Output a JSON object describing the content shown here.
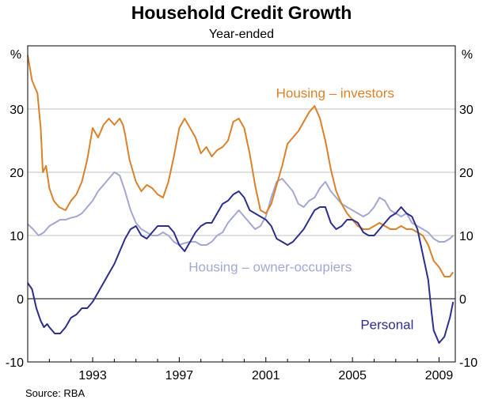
{
  "chart_data": {
    "type": "line",
    "title": "Household Credit Growth",
    "subtitle": "Year-ended",
    "y_unit_left": "%",
    "y_unit_right": "%",
    "ylim": [
      -10,
      40
    ],
    "yticks": [
      -10,
      0,
      10,
      20,
      30
    ],
    "xlim": [
      1990.0,
      2009.75
    ],
    "xticks": [
      1993,
      1997,
      2001,
      2005,
      2009
    ],
    "grid": true,
    "source": "Source: RBA",
    "colors": {
      "housing_investors": "#d9822b",
      "housing_owner": "#a3a8d2",
      "personal": "#2e2e8c",
      "grid": "#c0c0c0",
      "zero_line": "#000000"
    },
    "series": [
      {
        "name": "Housing – investors",
        "key": "housing_investors",
        "x": [
          1990.0,
          1990.2,
          1990.45,
          1990.6,
          1990.7,
          1990.85,
          1991.0,
          1991.2,
          1991.45,
          1991.75,
          1992.0,
          1992.25,
          1992.5,
          1992.75,
          1993.0,
          1993.25,
          1993.5,
          1993.75,
          1994.0,
          1994.25,
          1994.4,
          1994.5,
          1994.7,
          1995.0,
          1995.25,
          1995.5,
          1995.75,
          1996.0,
          1996.25,
          1996.5,
          1996.75,
          1997.0,
          1997.25,
          1997.5,
          1997.75,
          1998.0,
          1998.25,
          1998.5,
          1998.75,
          1999.0,
          1999.25,
          1999.5,
          1999.75,
          2000.0,
          2000.25,
          2000.5,
          2000.75,
          2001.0,
          2001.25,
          2001.5,
          2001.75,
          2002.0,
          2002.25,
          2002.5,
          2002.75,
          2003.0,
          2003.25,
          2003.5,
          2003.75,
          2004.0,
          2004.25,
          2004.5,
          2004.75,
          2005.0,
          2005.25,
          2005.5,
          2005.75,
          2006.0,
          2006.25,
          2006.5,
          2006.75,
          2007.0,
          2007.25,
          2007.5,
          2007.75,
          2008.0,
          2008.25,
          2008.5,
          2008.75,
          2009.0,
          2009.25,
          2009.5,
          2009.65
        ],
        "y": [
          38.5,
          34.5,
          32.5,
          27,
          20,
          21,
          17.5,
          15.5,
          14.5,
          14,
          15.5,
          16.5,
          18.5,
          22,
          27,
          25.5,
          27.5,
          28.5,
          27.5,
          28.5,
          27.5,
          26,
          22,
          18.5,
          17,
          18,
          17.5,
          16.5,
          16,
          18.5,
          22.5,
          27,
          28.5,
          27,
          25.5,
          23,
          24,
          22.5,
          23.5,
          24,
          25,
          28,
          28.5,
          27,
          23,
          18,
          14,
          13.5,
          15,
          18,
          21,
          24.5,
          25.5,
          26.5,
          28,
          29.5,
          30.5,
          28.5,
          25,
          20.5,
          17,
          15,
          13.5,
          12.5,
          11.5,
          11,
          11,
          11.5,
          12,
          11.5,
          11,
          11,
          11.5,
          11,
          11,
          10.5,
          10,
          8.5,
          6,
          5,
          3.5,
          3.5,
          4.2
        ]
      },
      {
        "name": "Housing – owner-occupiers",
        "key": "housing_owner",
        "x": [
          1990.0,
          1990.25,
          1990.5,
          1990.75,
          1991.0,
          1991.25,
          1991.5,
          1991.75,
          1992.0,
          1992.25,
          1992.5,
          1992.75,
          1993.0,
          1993.25,
          1993.5,
          1993.75,
          1994.0,
          1994.25,
          1994.5,
          1994.75,
          1995.0,
          1995.25,
          1995.5,
          1995.75,
          1996.0,
          1996.25,
          1996.5,
          1996.75,
          1997.0,
          1997.25,
          1997.5,
          1997.75,
          1998.0,
          1998.25,
          1998.5,
          1998.75,
          1999.0,
          1999.25,
          1999.5,
          1999.75,
          2000.0,
          2000.25,
          2000.5,
          2000.75,
          2001.0,
          2001.25,
          2001.5,
          2001.75,
          2002.0,
          2002.25,
          2002.5,
          2002.75,
          2003.0,
          2003.25,
          2003.5,
          2003.75,
          2004.0,
          2004.25,
          2004.5,
          2004.75,
          2005.0,
          2005.25,
          2005.5,
          2005.75,
          2006.0,
          2006.25,
          2006.5,
          2006.75,
          2007.0,
          2007.25,
          2007.5,
          2007.75,
          2008.0,
          2008.25,
          2008.5,
          2008.75,
          2009.0,
          2009.25,
          2009.5,
          2009.65
        ],
        "y": [
          11.8,
          11,
          10,
          10.5,
          11.5,
          12,
          12.5,
          12.5,
          12.8,
          13,
          13.5,
          14.5,
          15.5,
          17,
          18,
          19,
          20,
          19.5,
          17,
          14,
          12,
          11,
          10.5,
          10,
          10,
          10.5,
          10,
          9,
          8.5,
          8.8,
          9,
          9,
          8.5,
          8.5,
          9,
          10,
          10.5,
          12,
          13,
          14,
          13,
          12,
          11,
          11.5,
          13,
          16,
          18.5,
          19,
          18,
          17,
          15,
          14.5,
          15.5,
          16,
          17.5,
          18.5,
          17,
          16,
          15,
          14.5,
          14,
          13.5,
          13,
          13.5,
          14.5,
          16,
          15.5,
          14,
          13.5,
          13,
          13.5,
          12,
          11.5,
          11,
          10.5,
          9.5,
          9,
          9,
          9.5,
          10
        ]
      },
      {
        "name": "Personal",
        "key": "personal",
        "x": [
          1990.0,
          1990.2,
          1990.4,
          1990.6,
          1990.75,
          1990.9,
          1991.0,
          1991.25,
          1991.5,
          1991.75,
          1992.0,
          1992.25,
          1992.5,
          1992.75,
          1993.0,
          1993.25,
          1993.5,
          1993.75,
          1994.0,
          1994.25,
          1994.5,
          1994.75,
          1995.0,
          1995.25,
          1995.5,
          1995.75,
          1996.0,
          1996.25,
          1996.5,
          1996.75,
          1997.0,
          1997.25,
          1997.5,
          1997.75,
          1998.0,
          1998.25,
          1998.5,
          1998.75,
          1999.0,
          1999.25,
          1999.5,
          1999.75,
          2000.0,
          2000.25,
          2000.5,
          2000.75,
          2001.0,
          2001.25,
          2001.5,
          2001.75,
          2002.0,
          2002.25,
          2002.5,
          2002.75,
          2003.0,
          2003.25,
          2003.5,
          2003.75,
          2004.0,
          2004.25,
          2004.5,
          2004.75,
          2005.0,
          2005.25,
          2005.5,
          2005.75,
          2006.0,
          2006.25,
          2006.5,
          2006.75,
          2007.0,
          2007.25,
          2007.5,
          2007.75,
          2008.0,
          2008.25,
          2008.5,
          2008.65,
          2008.75,
          2009.0,
          2009.25,
          2009.5,
          2009.65
        ],
        "y": [
          2.5,
          1.5,
          -1.5,
          -3.5,
          -4.5,
          -4,
          -4.5,
          -5.5,
          -5.5,
          -4.5,
          -3,
          -2.5,
          -1.5,
          -1.5,
          -0.5,
          1,
          2.5,
          4,
          5.5,
          7.5,
          9.5,
          11,
          11.5,
          10,
          9.5,
          10.5,
          11.5,
          11.5,
          11.5,
          10.5,
          8.5,
          7.5,
          9,
          10.5,
          11.5,
          12,
          12,
          13.5,
          15,
          15.5,
          16.5,
          17,
          16,
          14,
          13.5,
          13,
          12.5,
          11.5,
          9.5,
          9,
          8.5,
          9,
          10,
          11,
          12.5,
          14,
          14.5,
          14.5,
          12,
          11,
          11.5,
          12.5,
          12.5,
          12,
          10.5,
          10,
          10,
          11,
          12,
          13,
          13.5,
          14.5,
          13.5,
          13,
          11,
          7,
          3,
          -2,
          -5,
          -7,
          -6,
          -3,
          -0.5
        ]
      }
    ],
    "annotations": [
      {
        "key": "housing_investors",
        "text": "Housing – investors",
        "x": 2004.2,
        "y": 31.8
      },
      {
        "key": "housing_owner",
        "text": "Housing – owner-occupiers",
        "x": 2001.2,
        "y": 4.3
      },
      {
        "key": "personal",
        "text": "Personal",
        "x": 2006.6,
        "y": -4.8
      }
    ]
  }
}
